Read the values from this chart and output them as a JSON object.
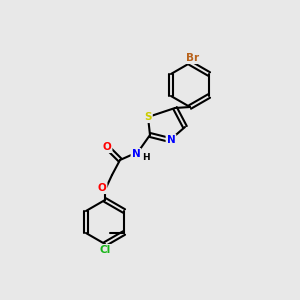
{
  "bg_color": "#e8e8e8",
  "bond_color": "#000000",
  "bond_lw": 1.5,
  "atom_colors": {
    "Br": "#b8621b",
    "Cl": "#19b519",
    "N": "#0000ff",
    "O": "#ff0000",
    "S": "#cccc00",
    "C": "#000000"
  },
  "font_size": 7.5
}
